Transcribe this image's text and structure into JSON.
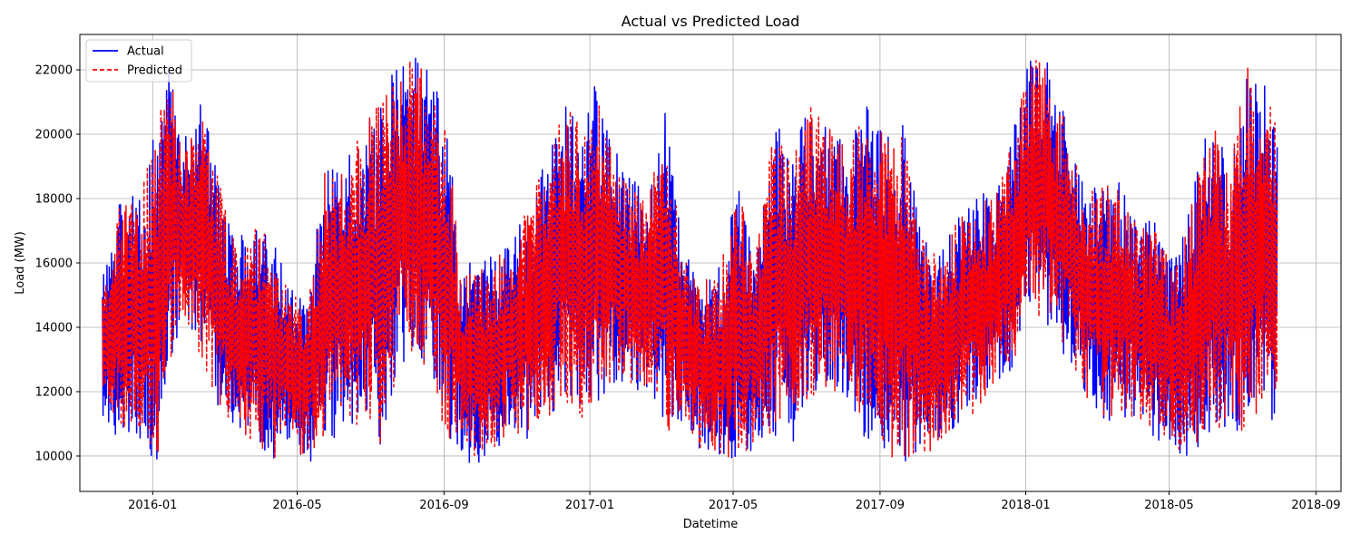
{
  "chart_data": {
    "type": "line",
    "title": "Actual vs Predicted Load",
    "xlabel": "Datetime",
    "ylabel": "Load (MW)",
    "x_range": [
      "2015-11-01",
      "2018-09-22"
    ],
    "ylim": [
      8900,
      23100
    ],
    "y_ticks": [
      10000,
      12000,
      14000,
      16000,
      18000,
      20000,
      22000
    ],
    "x_ticks": [
      "2016-01",
      "2016-05",
      "2016-09",
      "2017-01",
      "2017-05",
      "2017-09",
      "2018-01",
      "2018-05",
      "2018-09"
    ],
    "grid": true,
    "legend_position": "top-left",
    "series": [
      {
        "name": "Actual",
        "color": "#0000ff",
        "style": "solid",
        "x": [
          "2015-11-20",
          "2015-12-05",
          "2015-12-20",
          "2016-01-05",
          "2016-01-15",
          "2016-01-25",
          "2016-02-10",
          "2016-02-25",
          "2016-03-10",
          "2016-03-25",
          "2016-04-10",
          "2016-04-25",
          "2016-05-10",
          "2016-05-25",
          "2016-06-10",
          "2016-06-25",
          "2016-07-10",
          "2016-07-25",
          "2016-08-10",
          "2016-08-25",
          "2016-09-05",
          "2016-09-15",
          "2016-09-25",
          "2016-10-10",
          "2016-10-25",
          "2016-11-10",
          "2016-11-25",
          "2016-12-10",
          "2016-12-25",
          "2017-01-05",
          "2017-01-20",
          "2017-02-05",
          "2017-02-20",
          "2017-03-05",
          "2017-03-20",
          "2017-04-05",
          "2017-04-20",
          "2017-05-05",
          "2017-05-20",
          "2017-06-05",
          "2017-06-20",
          "2017-07-05",
          "2017-07-20",
          "2017-08-05",
          "2017-08-20",
          "2017-09-05",
          "2017-09-20",
          "2017-10-05",
          "2017-10-20",
          "2017-11-05",
          "2017-11-20",
          "2017-12-05",
          "2017-12-20",
          "2018-01-05",
          "2018-01-20",
          "2018-02-05",
          "2018-02-20",
          "2018-03-05",
          "2018-03-20",
          "2018-04-05",
          "2018-04-20",
          "2018-05-05",
          "2018-05-20",
          "2018-06-05",
          "2018-06-20",
          "2018-07-05",
          "2018-07-20",
          "2018-07-31"
        ],
        "min": [
          10800,
          10500,
          10600,
          9700,
          12500,
          14200,
          13000,
          11400,
          10300,
          10400,
          9800,
          10100,
          9700,
          10200,
          10800,
          10900,
          10100,
          12800,
          12900,
          11400,
          10000,
          10200,
          9600,
          9700,
          10600,
          10500,
          11000,
          11500,
          11000,
          11600,
          12200,
          11900,
          12000,
          10500,
          10900,
          10000,
          9700,
          9800,
          10300,
          10600,
          10300,
          11500,
          11800,
          11800,
          10400,
          9800,
          9800,
          9900,
          10200,
          10800,
          11200,
          12100,
          12500,
          14500,
          13900,
          12900,
          11800,
          10900,
          11300,
          11000,
          10500,
          10200,
          9800,
          10400,
          11000,
          10400,
          11500,
          10700
        ],
        "max": [
          15800,
          18200,
          18000,
          20500,
          22300,
          19600,
          21100,
          18800,
          16800,
          17300,
          16800,
          15400,
          14800,
          19300,
          19200,
          20300,
          21200,
          22300,
          22500,
          22000,
          19900,
          15800,
          16100,
          16400,
          16500,
          17900,
          19300,
          21300,
          20300,
          21600,
          19700,
          18600,
          18200,
          20700,
          16400,
          15500,
          16000,
          18500,
          16400,
          20600,
          19600,
          21000,
          20500,
          19600,
          20900,
          20200,
          20500,
          16900,
          16500,
          17600,
          18500,
          18000,
          19900,
          22500,
          22400,
          20200,
          18500,
          18700,
          18600,
          17300,
          17400,
          16000,
          18200,
          20600,
          19000,
          22200,
          21500,
          20300
        ]
      },
      {
        "name": "Predicted",
        "color": "#ff0000",
        "style": "dashed",
        "x": [
          "2015-11-20",
          "2015-12-05",
          "2015-12-20",
          "2016-01-05",
          "2016-01-15",
          "2016-01-25",
          "2016-02-10",
          "2016-02-25",
          "2016-03-10",
          "2016-03-25",
          "2016-04-10",
          "2016-04-25",
          "2016-05-10",
          "2016-05-25",
          "2016-06-10",
          "2016-06-25",
          "2016-07-10",
          "2016-07-25",
          "2016-08-10",
          "2016-08-25",
          "2016-09-05",
          "2016-09-15",
          "2016-09-25",
          "2016-10-10",
          "2016-10-25",
          "2016-11-10",
          "2016-11-25",
          "2016-12-10",
          "2016-12-25",
          "2017-01-05",
          "2017-01-20",
          "2017-02-05",
          "2017-02-20",
          "2017-03-05",
          "2017-03-20",
          "2017-04-05",
          "2017-04-20",
          "2017-05-05",
          "2017-05-20",
          "2017-06-05",
          "2017-06-20",
          "2017-07-05",
          "2017-07-20",
          "2017-08-05",
          "2017-08-20",
          "2017-09-05",
          "2017-09-20",
          "2017-10-05",
          "2017-10-20",
          "2017-11-05",
          "2017-11-20",
          "2017-12-05",
          "2017-12-20",
          "2018-01-05",
          "2018-01-20",
          "2018-02-05",
          "2018-02-20",
          "2018-03-05",
          "2018-03-20",
          "2018-04-05",
          "2018-04-20",
          "2018-05-05",
          "2018-05-20",
          "2018-06-05",
          "2018-06-20",
          "2018-07-05",
          "2018-07-20",
          "2018-07-31"
        ],
        "min": [
          10900,
          10600,
          10700,
          9900,
          12600,
          14300,
          13100,
          11500,
          10400,
          10500,
          9900,
          10200,
          9800,
          10300,
          10900,
          11000,
          10200,
          12900,
          13000,
          11500,
          10100,
          10300,
          9700,
          9800,
          10700,
          10600,
          11100,
          11600,
          11100,
          11700,
          12300,
          12000,
          12100,
          10600,
          11000,
          10100,
          9800,
          9900,
          10400,
          10700,
          10400,
          11600,
          11900,
          11900,
          10500,
          9900,
          9900,
          10000,
          10300,
          10900,
          11300,
          12200,
          12600,
          14600,
          14000,
          13000,
          11900,
          11000,
          11400,
          11100,
          10600,
          10300,
          9900,
          10500,
          11100,
          10500,
          11600,
          10800
        ],
        "max": [
          15700,
          18100,
          17900,
          20300,
          22100,
          19500,
          21000,
          18700,
          16700,
          17200,
          16700,
          15300,
          14700,
          19200,
          19100,
          20200,
          21100,
          22200,
          22300,
          21800,
          19800,
          15700,
          16000,
          16300,
          16400,
          17800,
          19200,
          21200,
          20200,
          21500,
          19600,
          18500,
          18100,
          20600,
          16300,
          15400,
          15900,
          18400,
          16300,
          20500,
          19500,
          20900,
          20400,
          19500,
          21200,
          20100,
          20400,
          16800,
          16400,
          17500,
          18400,
          17900,
          19800,
          22300,
          22300,
          20100,
          18400,
          18600,
          18500,
          17200,
          17300,
          15900,
          18100,
          20500,
          18900,
          22100,
          21400,
          20200
        ]
      }
    ]
  }
}
